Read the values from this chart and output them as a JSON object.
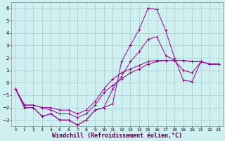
{
  "xlabel": "Windchill (Refroidissement éolien,°C)",
  "background_color": "#cff0f0",
  "line_color": "#990099",
  "grid_color": "#aacccc",
  "xlim": [
    -0.5,
    23.5
  ],
  "ylim": [
    -3.5,
    6.5
  ],
  "yticks": [
    -3,
    -2,
    -1,
    0,
    1,
    2,
    3,
    4,
    5,
    6
  ],
  "xticks": [
    0,
    1,
    2,
    3,
    4,
    5,
    6,
    7,
    8,
    9,
    10,
    11,
    12,
    13,
    14,
    15,
    16,
    17,
    18,
    19,
    20,
    21,
    22,
    23
  ],
  "series": [
    [
      -0.5,
      -2.0,
      -2.0,
      -2.7,
      -2.5,
      -3.0,
      -3.0,
      -3.4,
      -3.0,
      -2.2,
      -2.0,
      -1.7,
      1.7,
      3.0,
      4.3,
      6.0,
      5.9,
      4.2,
      2.0,
      0.2,
      0.1,
      1.7,
      1.5,
      1.5
    ],
    [
      -0.5,
      -2.0,
      -2.0,
      -2.7,
      -2.5,
      -3.0,
      -3.0,
      -3.4,
      -3.0,
      -2.2,
      -2.0,
      -0.5,
      0.5,
      1.7,
      2.5,
      3.5,
      3.7,
      2.2,
      1.8,
      1.0,
      0.8,
      1.7,
      1.5,
      1.5
    ],
    [
      -0.5,
      -1.8,
      -1.8,
      -2.0,
      -2.2,
      -2.5,
      -2.5,
      -2.8,
      -2.5,
      -1.8,
      -0.8,
      -0.2,
      0.3,
      0.8,
      1.1,
      1.5,
      1.7,
      1.8,
      1.8,
      1.8,
      1.7,
      1.7,
      1.5,
      1.5
    ],
    [
      -0.5,
      -1.8,
      -1.8,
      -2.0,
      -2.0,
      -2.2,
      -2.2,
      -2.5,
      -2.2,
      -1.5,
      -0.5,
      0.3,
      0.8,
      1.1,
      1.4,
      1.7,
      1.8,
      1.8,
      1.8,
      1.8,
      1.7,
      1.7,
      1.5,
      1.5
    ]
  ],
  "xlabel_fontsize": 6,
  "tick_fontsize": 5,
  "linewidth": 0.7,
  "markersize": 2.5
}
